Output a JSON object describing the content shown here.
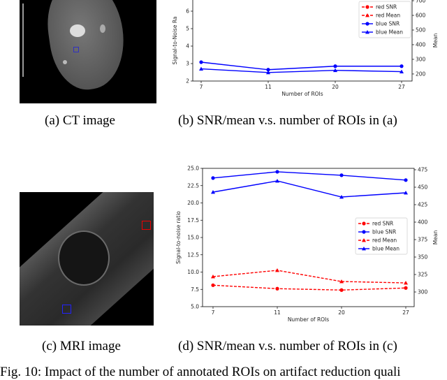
{
  "captions": {
    "a": "(a)  CT image",
    "b": "(b)  SNR/mean v.s. number of ROIs in (a)",
    "c": "(c)  MRI image",
    "d": "(d)  SNR/mean v.s. number of ROIs in (c)",
    "figure": "Fig. 10: Impact of the number of annotated ROIs on artifact reduction quali"
  },
  "chart_data": [
    {
      "type": "line",
      "title": "",
      "xlabel": "Number of ROIs",
      "ylabel": "Signal-to-Noise Ra",
      "y2label": "Mean",
      "categories": [
        "7",
        "11",
        "20",
        "27"
      ],
      "ylim": [
        2,
        6.8
      ],
      "y2lim": [
        152,
        724
      ],
      "yticks": [
        "2",
        "3",
        "4",
        "5",
        "6"
      ],
      "y2ticks": [
        "200",
        "300",
        "400",
        "500",
        "600",
        "700"
      ],
      "legend": "top-right",
      "series": [
        {
          "name": "red SNR",
          "axis": "left",
          "color": "#ff0000",
          "dashed": true,
          "marker": "circle",
          "values": [
            null,
            null,
            null,
            null
          ]
        },
        {
          "name": "red Mean",
          "axis": "right",
          "color": "#ff0000",
          "dashed": true,
          "marker": "triangle",
          "values": [
            null,
            null,
            null,
            null
          ]
        },
        {
          "name": "blue SNR",
          "axis": "left",
          "color": "#0000ff",
          "dashed": false,
          "marker": "circle",
          "values": [
            3.08,
            2.65,
            2.85,
            2.85
          ]
        },
        {
          "name": "blue Mean",
          "axis": "right",
          "color": "#0000ff",
          "dashed": false,
          "marker": "triangle",
          "values": [
            235,
            210,
            225,
            216
          ]
        }
      ]
    },
    {
      "type": "line",
      "title": "",
      "xlabel": "Number of ROIs",
      "ylabel": "Signal-to-noise ratio",
      "y2label": "Mean",
      "categories": [
        "7",
        "11",
        "20",
        "27"
      ],
      "ylim": [
        5.0,
        25.0
      ],
      "y2lim": [
        279,
        477
      ],
      "yticks": [
        "5.0",
        "7.5",
        "10.0",
        "12.5",
        "15.0",
        "17.5",
        "20.0",
        "22.5",
        "25.0"
      ],
      "y2ticks": [
        "300",
        "325",
        "350",
        "375",
        "400",
        "425",
        "450",
        "475"
      ],
      "legend": "center-right",
      "series": [
        {
          "name": "red SNR",
          "axis": "left",
          "color": "#ff0000",
          "dashed": true,
          "marker": "circle",
          "values": [
            8.1,
            7.6,
            7.4,
            7.7
          ]
        },
        {
          "name": "blue SNR",
          "axis": "left",
          "color": "#0000ff",
          "dashed": false,
          "marker": "circle",
          "values": [
            23.6,
            24.5,
            24.0,
            23.3
          ]
        },
        {
          "name": "red Mean",
          "axis": "right",
          "color": "#ff0000",
          "dashed": true,
          "marker": "triangle",
          "values": [
            322,
            331,
            315,
            313
          ]
        },
        {
          "name": "blue Mean",
          "axis": "right",
          "color": "#0000ff",
          "dashed": false,
          "marker": "triangle",
          "values": [
            443,
            459,
            436,
            442
          ]
        }
      ]
    }
  ]
}
